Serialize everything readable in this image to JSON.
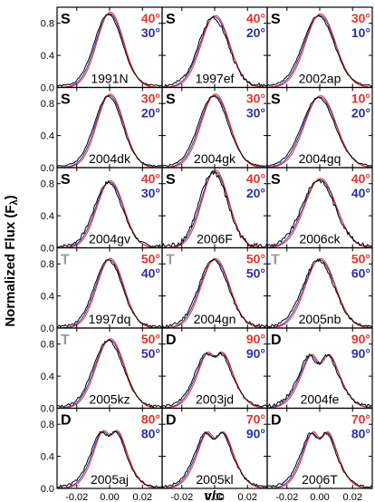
{
  "figure": {
    "ylabel": "Normalized Flux (F",
    "ylabel_sub": "λ",
    "ylabel_close": ")",
    "xlabel": "v/c"
  },
  "axes": {
    "xlim": [
      -0.032,
      0.032
    ],
    "ylim": [
      0.0,
      1.0
    ],
    "x_ticks": [
      -0.02,
      0.0,
      0.02
    ],
    "x_tick_labels": [
      "-0.02",
      "0.00",
      "0.02"
    ],
    "y_ticks": [
      0.0,
      0.4,
      0.8
    ],
    "y_tick_labels": [
      "0.0",
      "0.4",
      "0.8"
    ]
  },
  "colors": {
    "observed": "#000000",
    "model_red": "#e8312a",
    "model_blue": "#2b2fa8",
    "class_S": "#000000",
    "class_D": "#000000",
    "class_T": "#9a9a9a"
  },
  "chart_data": [
    {
      "type": "line",
      "panel": "1991N",
      "class": "S",
      "angle_red": "40°",
      "angle_blue": "30°",
      "peak": 0.92,
      "width": 0.0085,
      "dip": 0,
      "noise": 0.02,
      "seed": 1
    },
    {
      "type": "line",
      "panel": "1997ef",
      "class": "S",
      "angle_red": "40°",
      "angle_blue": "20°",
      "peak": 0.88,
      "width": 0.009,
      "dip": 0,
      "noise": 0.05,
      "seed": 2
    },
    {
      "type": "line",
      "panel": "2002ap",
      "class": "S",
      "angle_red": "30°",
      "angle_blue": "10°",
      "peak": 0.9,
      "width": 0.0095,
      "dip": 0,
      "noise": 0.02,
      "seed": 3
    },
    {
      "type": "line",
      "panel": "2004dk",
      "class": "S",
      "angle_red": "30°",
      "angle_blue": "20°",
      "peak": 0.9,
      "width": 0.0085,
      "dip": 0,
      "noise": 0.02,
      "seed": 4
    },
    {
      "type": "line",
      "panel": "2004gk",
      "class": "S",
      "angle_red": "30°",
      "angle_blue": "30°",
      "peak": 0.9,
      "width": 0.009,
      "dip": 0,
      "noise": 0.02,
      "seed": 5
    },
    {
      "type": "line",
      "panel": "2004gq",
      "class": "S",
      "angle_red": "10°",
      "angle_blue": "20°",
      "peak": 0.88,
      "width": 0.01,
      "dip": 0,
      "noise": 0.02,
      "seed": 6
    },
    {
      "type": "line",
      "panel": "2004gv",
      "class": "S",
      "angle_red": "40°",
      "angle_blue": "30°",
      "peak": 0.82,
      "width": 0.0085,
      "dip": 0,
      "noise": 0.04,
      "seed": 7
    },
    {
      "type": "line",
      "panel": "2006F",
      "class": "S",
      "angle_red": "40°",
      "angle_blue": "20°",
      "peak": 0.95,
      "width": 0.0085,
      "dip": 0,
      "noise": 0.07,
      "seed": 8
    },
    {
      "type": "line",
      "panel": "2006ck",
      "class": "S",
      "angle_red": "40°",
      "angle_blue": "40°",
      "peak": 0.85,
      "width": 0.01,
      "dip": 0,
      "noise": 0.05,
      "seed": 9
    },
    {
      "type": "line",
      "panel": "1997dq",
      "class": "T",
      "angle_red": "50°",
      "angle_blue": "40°",
      "peak": 0.85,
      "width": 0.0085,
      "dip": 0,
      "noise": 0.03,
      "seed": 10
    },
    {
      "type": "line",
      "panel": "2004gn",
      "class": "T",
      "angle_red": "50°",
      "angle_blue": "50°",
      "peak": 0.85,
      "width": 0.009,
      "dip": 0,
      "noise": 0.04,
      "seed": 11
    },
    {
      "type": "line",
      "panel": "2005nb",
      "class": "T",
      "angle_red": "50°",
      "angle_blue": "60°",
      "peak": 0.85,
      "width": 0.0095,
      "dip": 0,
      "noise": 0.04,
      "seed": 12
    },
    {
      "type": "line",
      "panel": "2005kz",
      "class": "T",
      "angle_red": "50°",
      "angle_blue": "50°",
      "peak": 0.85,
      "width": 0.009,
      "dip": 0,
      "noise": 0.03,
      "seed": 13
    },
    {
      "type": "line",
      "panel": "2003jd",
      "class": "D",
      "angle_red": "90°",
      "angle_blue": "90°",
      "peak": 0.85,
      "width": 0.0095,
      "dip": 0.25,
      "noise": 0.03,
      "seed": 14
    },
    {
      "type": "line",
      "panel": "2004fe",
      "class": "D",
      "angle_red": "90°",
      "angle_blue": "90°",
      "peak": 0.85,
      "width": 0.01,
      "dip": 0.35,
      "noise": 0.04,
      "seed": 15
    },
    {
      "type": "line",
      "panel": "2005aj",
      "class": "D",
      "angle_red": "80°",
      "angle_blue": "80°",
      "peak": 0.88,
      "width": 0.009,
      "dip": 0.25,
      "noise": 0.03,
      "seed": 16
    },
    {
      "type": "line",
      "panel": "2005kl",
      "class": "D",
      "angle_red": "70°",
      "angle_blue": "90°",
      "peak": 0.88,
      "width": 0.0095,
      "dip": 0.3,
      "noise": 0.03,
      "seed": 17
    },
    {
      "type": "line",
      "panel": "2006T",
      "class": "D",
      "angle_red": "70°",
      "angle_blue": "80°",
      "peak": 0.88,
      "width": 0.009,
      "dip": 0.3,
      "noise": 0.03,
      "seed": 18
    }
  ]
}
